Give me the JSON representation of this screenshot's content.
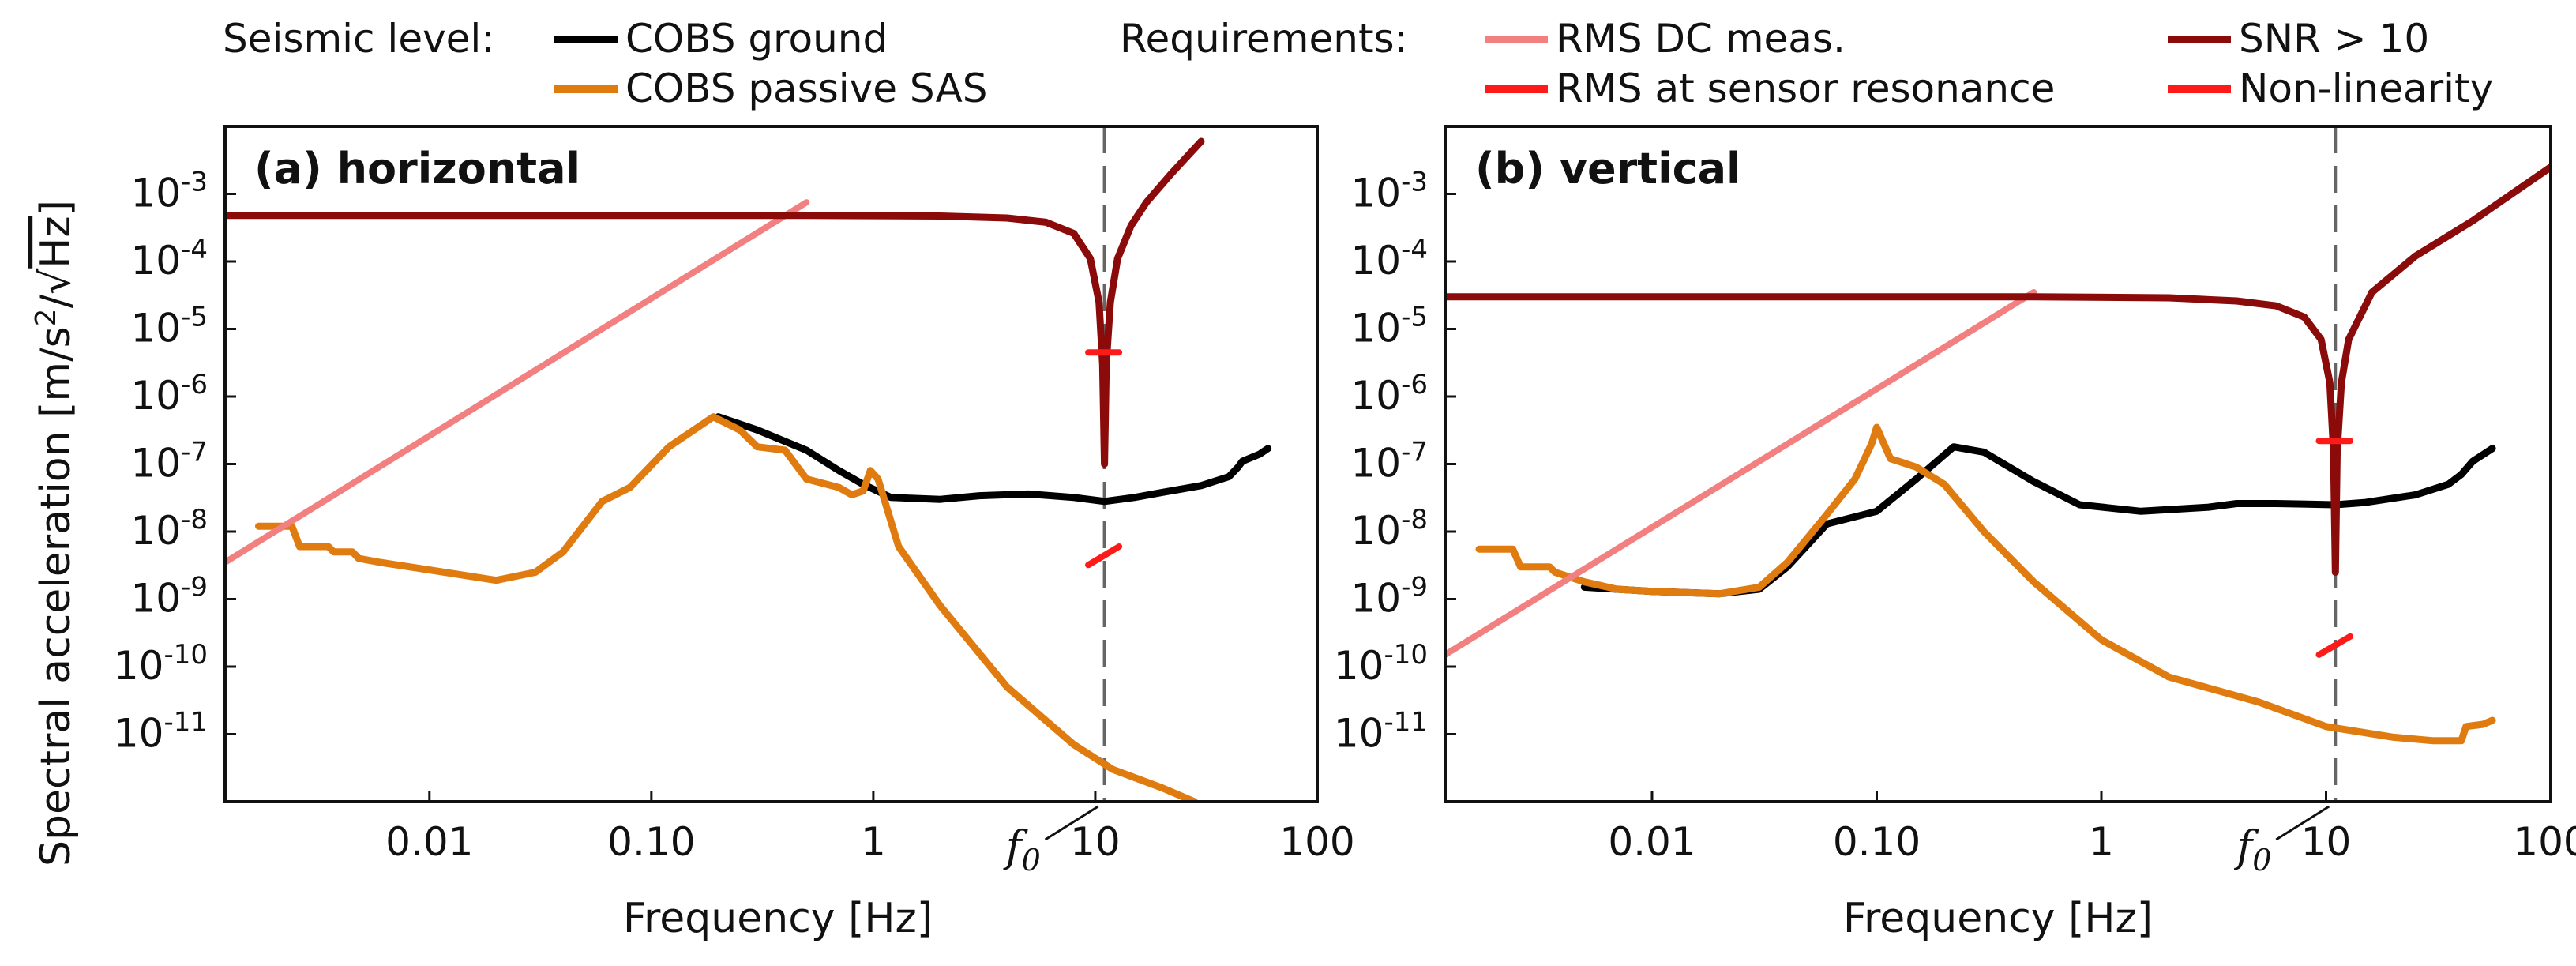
{
  "legend": {
    "seismic_title": "Seismic level:",
    "requirements_title": "Requirements:",
    "items": [
      {
        "label": "COBS ground",
        "color": "#000000"
      },
      {
        "label": "COBS passive SAS",
        "color": "#e07b10"
      },
      {
        "label": "RMS DC meas.",
        "color": "#f28080"
      },
      {
        "label": "RMS at sensor resonance",
        "color": "#ff1a1a"
      },
      {
        "label": "SNR > 10",
        "color": "#8b0a0a"
      },
      {
        "label": "Non-linearity",
        "color": "#ff1a1a"
      }
    ]
  },
  "axis_labels": {
    "ylabel_prefix": "Spectral acceleration [m/s",
    "ylabel_sup": "2",
    "ylabel_mid": "/",
    "ylabel_sqrt": "√",
    "ylabel_hz": "Hz",
    "ylabel_close": "]",
    "xlabel": "Frequency [Hz]"
  },
  "annotations": {
    "f0_label": "f",
    "f0_sub": "0"
  },
  "colors": {
    "ground": "#000000",
    "sas": "#e07b10",
    "rms_dc": "#f28080",
    "rms_res": "#ff1a1a",
    "snr": "#8b0a0a",
    "nonlin": "#ff1a1a",
    "frame": "#111111",
    "f0_line": "#666666"
  },
  "chart_data": [
    {
      "type": "line",
      "panel": "a",
      "title": "(a)  horizontal",
      "xscale": "log",
      "yscale": "log",
      "xlim": [
        0.0012,
        100
      ],
      "ylim": [
        1e-12,
        0.01
      ],
      "x_ticks": [
        {
          "v": 0.01,
          "label": "0.01"
        },
        {
          "v": 0.1,
          "label": "0.10"
        },
        {
          "v": 1,
          "label": "1"
        },
        {
          "v": 10,
          "label": "10"
        },
        {
          "v": 100,
          "label": "100"
        }
      ],
      "y_ticks": [
        {
          "exp": -3
        },
        {
          "exp": -4
        },
        {
          "exp": -5
        },
        {
          "exp": -6
        },
        {
          "exp": -7
        },
        {
          "exp": -8
        },
        {
          "exp": -9
        },
        {
          "exp": -10
        },
        {
          "exp": -11
        }
      ],
      "tick_base": "10",
      "f0": 11,
      "series": [
        {
          "name": "COBS ground",
          "key": "ground",
          "x": [
            0.2,
            0.3,
            0.5,
            0.7,
            0.9,
            1.2,
            2,
            3,
            5,
            8,
            11,
            15,
            20,
            30,
            40,
            44,
            46,
            55,
            60
          ],
          "y": [
            5e-07,
            3.2e-07,
            1.6e-07,
            8e-08,
            5e-08,
            3.2e-08,
            3e-08,
            3.4e-08,
            3.6e-08,
            3.2e-08,
            2.8e-08,
            3.2e-08,
            3.8e-08,
            4.8e-08,
            6.5e-08,
            9e-08,
            1.1e-07,
            1.4e-07,
            1.7e-07
          ]
        },
        {
          "name": "COBS passive SAS",
          "key": "sas",
          "x": [
            0.0017,
            0.0024,
            0.0026,
            0.0035,
            0.0037,
            0.0045,
            0.0048,
            0.006,
            0.01,
            0.02,
            0.03,
            0.04,
            0.06,
            0.08,
            0.12,
            0.19,
            0.25,
            0.3,
            0.4,
            0.5,
            0.7,
            0.8,
            0.9,
            0.97,
            1.05,
            1.3,
            2,
            4,
            8,
            12,
            20,
            28
          ],
          "y": [
            1.2e-08,
            1.2e-08,
            6e-09,
            6e-09,
            5e-09,
            5e-09,
            4e-09,
            3.5e-09,
            2.7e-09,
            1.9e-09,
            2.5e-09,
            5e-09,
            2.8e-08,
            4.5e-08,
            1.8e-07,
            5e-07,
            3.2e-07,
            1.8e-07,
            1.6e-07,
            6e-08,
            4.5e-08,
            3.5e-08,
            4e-08,
            8e-08,
            6e-08,
            6e-09,
            8e-10,
            5e-11,
            7e-12,
            3e-12,
            1.6e-12,
            1e-12
          ]
        },
        {
          "name": "RMS DC meas.",
          "key": "rms_dc",
          "x": [
            0.0012,
            0.5
          ],
          "y": [
            3.5e-09,
            0.00075
          ]
        },
        {
          "name": "SNR > 10",
          "key": "snr",
          "x": [
            0.0012,
            0.5,
            2,
            4,
            6,
            8,
            9.5,
            10.4,
            10.8,
            11,
            11.2,
            11.7,
            12.6,
            14.5,
            17,
            22,
            30
          ],
          "y": [
            0.00048,
            0.00048,
            0.00047,
            0.00044,
            0.00038,
            0.00026,
            0.00011,
            2.5e-05,
            3e-06,
            1e-07,
            3e-06,
            2.5e-05,
            0.00011,
            0.00034,
            0.00075,
            0.002,
            0.006
          ]
        },
        {
          "name": "RMS at sensor resonance",
          "key": "rms_res",
          "x": [
            9.3,
            12.8
          ],
          "y": [
            4.5e-06,
            4.5e-06
          ]
        },
        {
          "name": "Non-linearity",
          "key": "nonlin",
          "x": [
            9.3,
            12.8
          ],
          "y": [
            3.2e-09,
            6e-09
          ]
        }
      ]
    },
    {
      "type": "line",
      "panel": "b",
      "title": "(b)  vertical",
      "xscale": "log",
      "yscale": "log",
      "xlim": [
        0.0012,
        100
      ],
      "ylim": [
        1e-12,
        0.01
      ],
      "x_ticks": [
        {
          "v": 0.01,
          "label": "0.01"
        },
        {
          "v": 0.1,
          "label": "0.10"
        },
        {
          "v": 1,
          "label": "1"
        },
        {
          "v": 10,
          "label": "10"
        },
        {
          "v": 100,
          "label": "100"
        }
      ],
      "y_ticks": [
        {
          "exp": -3
        },
        {
          "exp": -4
        },
        {
          "exp": -5
        },
        {
          "exp": -6
        },
        {
          "exp": -7
        },
        {
          "exp": -8
        },
        {
          "exp": -9
        },
        {
          "exp": -10
        },
        {
          "exp": -11
        }
      ],
      "tick_base": "10",
      "f0": 11,
      "series": [
        {
          "name": "COBS ground",
          "key": "ground",
          "x": [
            0.005,
            0.007,
            0.01,
            0.02,
            0.03,
            0.04,
            0.06,
            0.1,
            0.15,
            0.22,
            0.3,
            0.5,
            0.8,
            1.5,
            3,
            4,
            6,
            11,
            15,
            25,
            35,
            40,
            45,
            55
          ],
          "y": [
            1.5e-09,
            1.4e-09,
            1.3e-09,
            1.2e-09,
            1.4e-09,
            3e-09,
            1.3e-08,
            2e-08,
            6e-08,
            1.8e-07,
            1.5e-07,
            5.5e-08,
            2.5e-08,
            2e-08,
            2.3e-08,
            2.6e-08,
            2.6e-08,
            2.5e-08,
            2.7e-08,
            3.5e-08,
            5e-08,
            7e-08,
            1.1e-07,
            1.7e-07
          ]
        },
        {
          "name": "COBS passive SAS",
          "key": "sas",
          "x": [
            0.0017,
            0.0024,
            0.0026,
            0.0035,
            0.0037,
            0.005,
            0.007,
            0.01,
            0.02,
            0.03,
            0.04,
            0.06,
            0.08,
            0.095,
            0.1,
            0.115,
            0.15,
            0.2,
            0.3,
            0.5,
            1,
            2,
            5,
            10,
            20,
            30,
            40,
            42,
            50,
            55
          ],
          "y": [
            5.5e-09,
            5.5e-09,
            3e-09,
            3e-09,
            2.5e-09,
            1.8e-09,
            1.4e-09,
            1.3e-09,
            1.2e-09,
            1.5e-09,
            3.5e-09,
            1.8e-08,
            6e-08,
            2e-07,
            3.5e-07,
            1.2e-07,
            9e-08,
            5e-08,
            1e-08,
            1.8e-09,
            2.5e-10,
            7e-11,
            3e-11,
            1.3e-11,
            9e-12,
            8e-12,
            8e-12,
            1.3e-11,
            1.4e-11,
            1.6e-11
          ]
        },
        {
          "name": "RMS DC meas.",
          "key": "rms_dc",
          "x": [
            0.0012,
            0.5
          ],
          "y": [
            1.5e-10,
            3.5e-05
          ]
        },
        {
          "name": "SNR > 10",
          "key": "snr",
          "x": [
            0.0012,
            0.5,
            2,
            4,
            6,
            8,
            9.5,
            10.4,
            10.8,
            11,
            11.2,
            11.7,
            12.6,
            16,
            25,
            45,
            100
          ],
          "y": [
            3e-05,
            3e-05,
            2.9e-05,
            2.6e-05,
            2.2e-05,
            1.5e-05,
            7e-06,
            1.6e-06,
            1.5e-07,
            2.5e-09,
            1.5e-07,
            1.6e-06,
            7e-06,
            3.5e-05,
            0.00012,
            0.0004,
            0.0025
          ]
        },
        {
          "name": "RMS at sensor resonance",
          "key": "rms_res",
          "x": [
            9.3,
            12.8
          ],
          "y": [
            2.2e-07,
            2.2e-07
          ]
        },
        {
          "name": "Non-linearity",
          "key": "nonlin",
          "x": [
            9.3,
            12.8
          ],
          "y": [
            1.5e-10,
            2.8e-10
          ]
        }
      ]
    }
  ]
}
